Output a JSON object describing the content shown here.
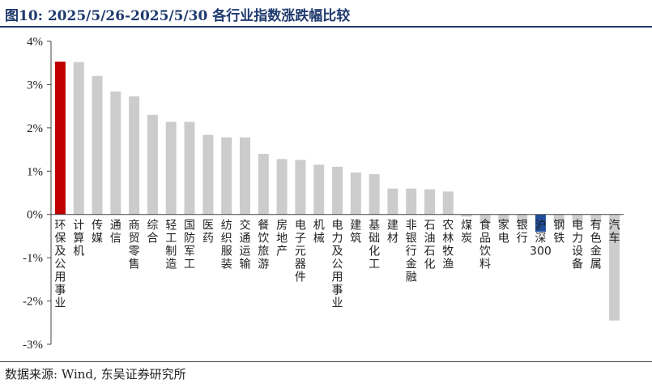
{
  "header": {
    "title": "图10:  2025/5/26-2025/5/30 各行业指数涨跌幅比较"
  },
  "footer": {
    "source": "数据来源: Wind, 东吴证券研究所"
  },
  "colors": {
    "highlight": "#c00000",
    "benchmark": "#1f4e9c",
    "default": "#cccccc",
    "title": "#1f3a6e"
  },
  "chart_data": {
    "type": "bar",
    "title": "",
    "xlabel": "",
    "ylabel": "",
    "ylim": [
      -3,
      4
    ],
    "yticks": [
      4,
      3,
      2,
      1,
      0,
      -1,
      -2,
      -3
    ],
    "ytick_labels": [
      "4%",
      "3%",
      "2%",
      "1%",
      "0%",
      "-1%",
      "-2%",
      "-3%"
    ],
    "grid": false,
    "unit": "%",
    "categories": [
      "环保及公用事业",
      "计算机",
      "传媒",
      "通信",
      "商贸零售",
      "综合",
      "轻工制造",
      "国防军工",
      "医药",
      "纺织服装",
      "交通运输",
      "餐饮旅游",
      "房地产",
      "电子元器件",
      "机械",
      "电力及公用事业",
      "建筑",
      "基础化工",
      "建材",
      "非银行金融",
      "石油石化",
      "农林牧渔",
      "煤炭",
      "食品饮料",
      "家电",
      "银行",
      "沪深300",
      "钢铁",
      "电力设备",
      "有色金属",
      "汽车"
    ],
    "values": [
      3.53,
      3.52,
      3.2,
      2.84,
      2.73,
      2.3,
      2.14,
      2.14,
      1.84,
      1.78,
      1.78,
      1.4,
      1.28,
      1.26,
      1.15,
      1.1,
      0.97,
      0.93,
      0.6,
      0.6,
      0.58,
      0.53,
      -0.05,
      -0.18,
      -0.18,
      -0.2,
      -0.4,
      -0.2,
      -0.2,
      -0.2,
      -2.45
    ],
    "highlight_index": 0,
    "benchmark_index": 26
  }
}
